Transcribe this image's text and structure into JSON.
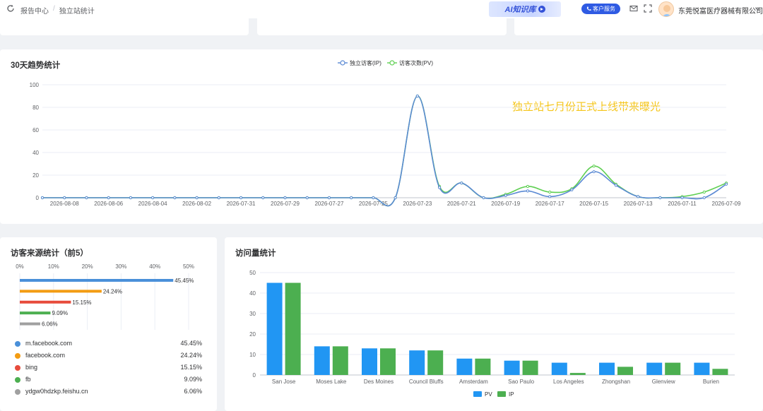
{
  "header": {
    "breadcrumb": [
      "报告中心",
      "独立站统计"
    ],
    "breadcrumb_sep": "/",
    "ai_banner_label": "AI知识库",
    "service_button_label": "客户服务",
    "company_name": "东莞悦富医疗器械有限公司",
    "icons": [
      "refresh-icon",
      "mail-icon",
      "fullscreen-icon",
      "chevron-down-icon"
    ]
  },
  "trend": {
    "title": "30天趋势统计",
    "annotation": "独立站七月份正式上线带来曝光",
    "annotation_color": "#f5c518",
    "chart_data": {
      "type": "line",
      "x": [
        "2026-08-09",
        "2026-08-08",
        "2026-08-07",
        "2026-08-06",
        "2026-08-05",
        "2026-08-04",
        "2026-08-03",
        "2026-08-02",
        "2026-08-01",
        "2026-07-31",
        "2026-07-30",
        "2026-07-29",
        "2026-07-28",
        "2026-07-27",
        "2026-07-26",
        "2026-07-25",
        "2026-07-24",
        "2026-07-23",
        "2026-07-22",
        "2026-07-21",
        "2026-07-20",
        "2026-07-19",
        "2026-07-18",
        "2026-07-17",
        "2026-07-16",
        "2026-07-15",
        "2026-07-14",
        "2026-07-13",
        "2026-07-12",
        "2026-07-11",
        "2026-07-10",
        "2026-07-09"
      ],
      "x_tick_labels": [
        "2026-08-08",
        "2026-08-06",
        "2026-08-04",
        "2026-08-02",
        "2026-07-31",
        "2026-07-29",
        "2026-07-27",
        "2026-07-25",
        "2026-07-23",
        "2026-07-21",
        "2026-07-19",
        "2026-07-17",
        "2026-07-15",
        "2026-07-13",
        "2026-07-11",
        "2026-07-09"
      ],
      "series": [
        {
          "name": "独立访客(IP)",
          "color": "#5b8ad4",
          "values": [
            0,
            0,
            0,
            0,
            0,
            0,
            0,
            0,
            0,
            0,
            0,
            0,
            0,
            0,
            0,
            0,
            0,
            90,
            9,
            13,
            0,
            2,
            6,
            1,
            7,
            23,
            11,
            1,
            0,
            0,
            0,
            12
          ]
        },
        {
          "name": "访客次数(PV)",
          "color": "#5fcf52",
          "values": [
            0,
            0,
            0,
            0,
            0,
            0,
            0,
            0,
            0,
            0,
            0,
            0,
            0,
            0,
            0,
            0,
            0,
            90,
            10,
            13,
            0,
            3,
            10,
            5,
            8,
            28,
            12,
            1,
            0,
            1,
            5,
            13
          ]
        }
      ],
      "ylim": [
        0,
        100
      ],
      "y_ticks": [
        0,
        20,
        40,
        60,
        80,
        100
      ],
      "legend": "top-center",
      "grid": true
    }
  },
  "sources": {
    "title": "访客来源统计（前5）",
    "chart_data": {
      "type": "bar",
      "orientation": "horizontal",
      "categories": [
        "m.facebook.com",
        "facebook.com",
        "bing",
        "fb",
        "ydgw0hdzkp.feishu.cn"
      ],
      "values": [
        45.45,
        24.24,
        15.15,
        9.09,
        6.06
      ],
      "value_labels": [
        "45.45%",
        "24.24%",
        "15.15%",
        "9.09%",
        "6.06%"
      ],
      "colors": [
        "#4a90d9",
        "#f39c12",
        "#e74c3c",
        "#4caf50",
        "#a0a0a0"
      ],
      "x_ticks": [
        "0%",
        "10%",
        "20%",
        "30%",
        "40%",
        "50%"
      ],
      "xlim": [
        0,
        50
      ]
    }
  },
  "visits": {
    "title": "访问量统计",
    "chart_data": {
      "type": "bar",
      "categories": [
        "San Jose",
        "Moses Lake",
        "Des Moines",
        "Council Bluffs",
        "Amsterdam",
        "Sao Paulo",
        "Los Angeles",
        "Zhongshan",
        "Glenview",
        "Burien"
      ],
      "series": [
        {
          "name": "PV",
          "color": "#2196f3",
          "values": [
            45,
            14,
            13,
            12,
            8,
            7,
            6,
            6,
            6,
            6
          ]
        },
        {
          "name": "IP",
          "color": "#4caf50",
          "values": [
            45,
            14,
            13,
            12,
            8,
            7,
            1,
            4,
            6,
            3
          ]
        }
      ],
      "ylim": [
        0,
        50
      ],
      "y_ticks": [
        0,
        10,
        20,
        30,
        40,
        50
      ],
      "legend": "bottom-center",
      "grid": true
    }
  }
}
